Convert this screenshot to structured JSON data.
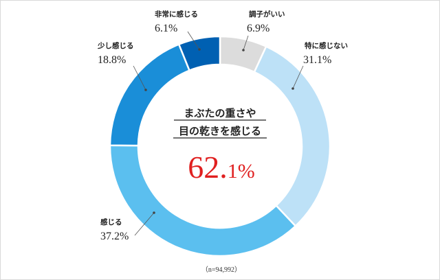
{
  "chart_data": {
    "type": "donut",
    "series": [
      {
        "name": "調子がいい",
        "value": 6.9,
        "label": "6.9%",
        "color": "#dcdcdc"
      },
      {
        "name": "特に感じない",
        "value": 31.1,
        "label": "31.1%",
        "color": "#bde1f7"
      },
      {
        "name": "感じる",
        "value": 37.2,
        "label": "37.2%",
        "color": "#5bbfef"
      },
      {
        "name": "少し感じる",
        "value": 18.8,
        "label": "18.8%",
        "color": "#1a8ed8"
      },
      {
        "name": "非常に感じる",
        "value": 6.1,
        "label": "6.1%",
        "color": "#0060b2"
      }
    ],
    "center": {
      "line1": "まぶたの重さや",
      "line2": "目の乾きを感じる",
      "value_int": "62.",
      "value_dec": "1",
      "value_unit": "%"
    },
    "note": "（n=94,992）"
  }
}
